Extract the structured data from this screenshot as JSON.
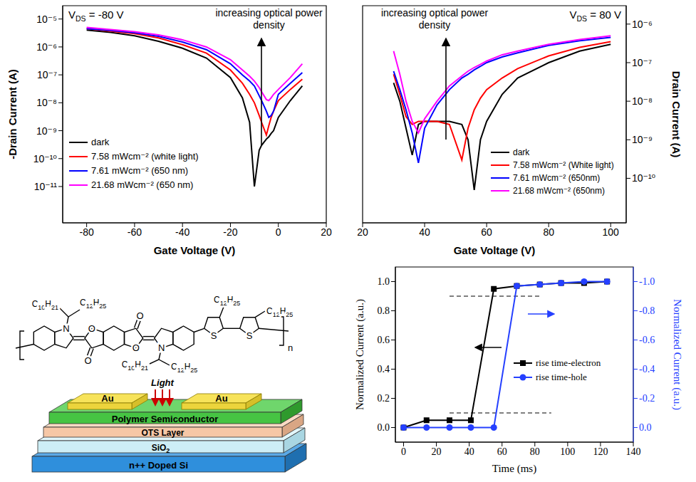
{
  "chart_data": [
    {
      "type": "line",
      "log": "y",
      "grid": false,
      "legend": "lower left",
      "annotations": [
        "VDS = -80 V",
        "increasing optical power density"
      ],
      "x_label": "Gate Voltage (V)",
      "y_label": "-Drain Current (A)",
      "x": [
        -80,
        -70,
        -60,
        -50,
        -40,
        -30,
        -20,
        -15,
        -12,
        -10,
        -8,
        -7,
        -5,
        -4,
        -3,
        -2,
        0,
        5,
        10
      ],
      "series": [
        {
          "name": "dark",
          "color": "#000000",
          "values": [
            4e-06,
            3.3e-06,
            2.5e-06,
            1.6e-06,
            9e-07,
            4e-07,
            8e-08,
            1.5e-08,
            2e-09,
            1e-11,
            2e-10,
            3e-10,
            5e-10,
            6e-10,
            8e-10,
            1e-09,
            3e-09,
            1.2e-08,
            4e-08
          ]
        },
        {
          "name": "7.58 mWcm⁻² (white light)",
          "color": "#ff0000",
          "values": [
            4.5e-06,
            3.7e-06,
            3e-06,
            2.1e-06,
            1.2e-06,
            6e-07,
            1.5e-07,
            5e-08,
            2e-08,
            1e-08,
            3.5e-09,
            2e-09,
            7e-10,
            1.5e-09,
            3e-09,
            5e-09,
            1.2e-08,
            3e-08,
            7e-08
          ]
        },
        {
          "name": "7.61 mWcm⁻² (650 nm)",
          "color": "#0000ff",
          "values": [
            4.5e-06,
            3.9e-06,
            3.2e-06,
            2.4e-06,
            1.5e-06,
            8e-07,
            2.5e-07,
            1e-07,
            6e-08,
            4e-08,
            1.8e-08,
            1.2e-08,
            5e-09,
            3e-09,
            3.5e-09,
            5e-09,
            2e-08,
            5e-08,
            1.2e-07
          ]
        },
        {
          "name": "21.68 mWcm⁻² (650 nm)",
          "color": "#ff00ff",
          "values": [
            5e-06,
            4.2e-06,
            3.5e-06,
            2.7e-06,
            1.8e-06,
            1e-06,
            3.5e-07,
            1.5e-07,
            9e-08,
            6e-08,
            3.5e-08,
            2.5e-08,
            1.3e-08,
            1.2e-08,
            1.5e-08,
            2e-08,
            3e-08,
            8e-08,
            2.5e-07
          ]
        }
      ],
      "xlim": [
        -90,
        20
      ],
      "xticks": [
        -80,
        -60,
        -40,
        -20,
        0,
        20
      ],
      "ylim": [
        5e-13,
        3e-05
      ],
      "yticks": [
        {
          "value": 1e-11,
          "label": "10⁻¹¹"
        },
        {
          "value": 1e-10,
          "label": "10⁻¹⁰"
        },
        {
          "value": 1e-09,
          "label": "10⁻⁹"
        },
        {
          "value": 1e-08,
          "label": "10⁻⁸"
        },
        {
          "value": 1e-07,
          "label": "10⁻⁷"
        },
        {
          "value": 1e-06,
          "label": "10⁻⁶"
        },
        {
          "value": 1e-05,
          "label": "10⁻⁵"
        }
      ]
    },
    {
      "type": "line",
      "log": "y",
      "grid": false,
      "legend": "lower right",
      "annotations": [
        "VDS = 80 V",
        "increasing optical power density"
      ],
      "x_label": "Gate Voltage (V)",
      "y_label": "Drain Current (A)",
      "x": [
        30,
        32,
        34,
        36,
        38,
        40,
        44,
        48,
        52,
        54,
        56,
        58,
        60,
        65,
        70,
        80,
        90,
        100
      ],
      "series": [
        {
          "name": "dark",
          "color": "#000000",
          "values": [
            3e-08,
            1e-08,
            2e-09,
            4e-10,
            2.5e-09,
            3e-09,
            3e-09,
            3e-09,
            2.5e-09,
            1e-09,
            5e-11,
            1e-09,
            3e-09,
            1.5e-08,
            4e-08,
            1e-07,
            2e-07,
            3e-07
          ]
        },
        {
          "name": "7.58 mWcm⁻² (White light)",
          "color": "#ff0000",
          "values": [
            5e-08,
            1.5e-08,
            4e-09,
            2.5e-09,
            3e-09,
            3e-09,
            3e-09,
            2.5e-09,
            3e-10,
            2e-09,
            6e-09,
            1.2e-08,
            2e-08,
            4e-08,
            7e-08,
            1.5e-07,
            2.5e-07,
            3.5e-07
          ]
        },
        {
          "name": "7.61 mWcm⁻² (650nm)",
          "color": "#0000ff",
          "values": [
            6e-08,
            2e-08,
            6e-09,
            1.5e-09,
            2.5e-10,
            2e-09,
            8e-09,
            2e-08,
            4e-08,
            5e-08,
            6.5e-08,
            8e-08,
            1e-07,
            1.4e-07,
            1.8e-07,
            2.8e-07,
            3.7e-07,
            4.5e-07
          ]
        },
        {
          "name": "21.68 mWcm⁻² (650nm)",
          "color": "#ff00ff",
          "values": [
            2e-07,
            5e-08,
            1e-08,
            3e-09,
            1.5e-09,
            3.5e-09,
            1e-08,
            2.5e-08,
            4.5e-08,
            6e-08,
            7.5e-08,
            9e-08,
            1.1e-07,
            1.6e-07,
            2e-07,
            3e-07,
            4e-07,
            5e-07
          ]
        }
      ],
      "xlim": [
        20,
        105
      ],
      "xticks": [
        20,
        40,
        60,
        80,
        100
      ],
      "ylim": [
        7e-12,
        3e-06
      ],
      "yticks": [
        {
          "value": 1e-10,
          "label": "10⁻¹⁰"
        },
        {
          "value": 1e-09,
          "label": "10⁻⁹"
        },
        {
          "value": 1e-08,
          "label": "10⁻⁸"
        },
        {
          "value": 1e-07,
          "label": "10⁻⁷"
        },
        {
          "value": 1e-06,
          "label": "10⁻⁶"
        }
      ]
    },
    {
      "type": "line",
      "grid": false,
      "legend": "lower right",
      "x_label": "Time (ms)",
      "y_label": "Normalized Current (a.u.)",
      "y2_label": "Normalized Current (a.u.)",
      "x": [
        0,
        14,
        28,
        41,
        55,
        69,
        83,
        96,
        110,
        124
      ],
      "series": [
        {
          "name": "rise time-electron",
          "color": "#000000",
          "marker": "square",
          "values": [
            0,
            0.05,
            0.05,
            0.05,
            0.95,
            0.97,
            0.98,
            0.99,
            0.99,
            1.0
          ]
        },
        {
          "name": "rise time-hole",
          "color": "#2540ff",
          "marker": "circle",
          "axis": "y2",
          "values": [
            0,
            0,
            0,
            0,
            0,
            -0.97,
            -0.98,
            -0.99,
            -1.0,
            -1.0
          ]
        }
      ],
      "reference_lines": [
        {
          "y": 0.9,
          "x": [
            28,
            83
          ]
        },
        {
          "y": 0.1,
          "x": [
            28,
            90
          ]
        }
      ],
      "xlim": [
        -5,
        140
      ],
      "xticks": [
        0,
        20,
        40,
        60,
        80,
        100,
        120,
        140
      ],
      "ylim": [
        -0.1,
        1.1
      ],
      "yticks": [
        {
          "value": 0,
          "label": "0.0"
        },
        0.2,
        0.4,
        0.6,
        0.8,
        {
          "value": 1,
          "label": "1.0"
        }
      ],
      "y2lim": [
        0.1,
        -1.1
      ],
      "y2ticks": [
        {
          "value": 0,
          "label": "0.0"
        },
        -0.2,
        -0.4,
        -0.6,
        -0.8,
        {
          "value": -1,
          "label": "-1.0"
        }
      ]
    }
  ],
  "diagram": {
    "structure": {
      "substituents": [
        "C10H21",
        "C12H25",
        "C10H21",
        "C12H25",
        "C12H25",
        "C12H25"
      ],
      "atoms": [
        "N",
        "O",
        "O",
        "O",
        "O",
        "N",
        "S",
        "S"
      ],
      "repeat": "n"
    },
    "device": {
      "light": "Light",
      "layers": [
        "Au",
        "Au",
        "Polymer Semiconductor",
        "OTS Layer",
        "SiO2",
        "n++ Doped Si"
      ]
    }
  }
}
